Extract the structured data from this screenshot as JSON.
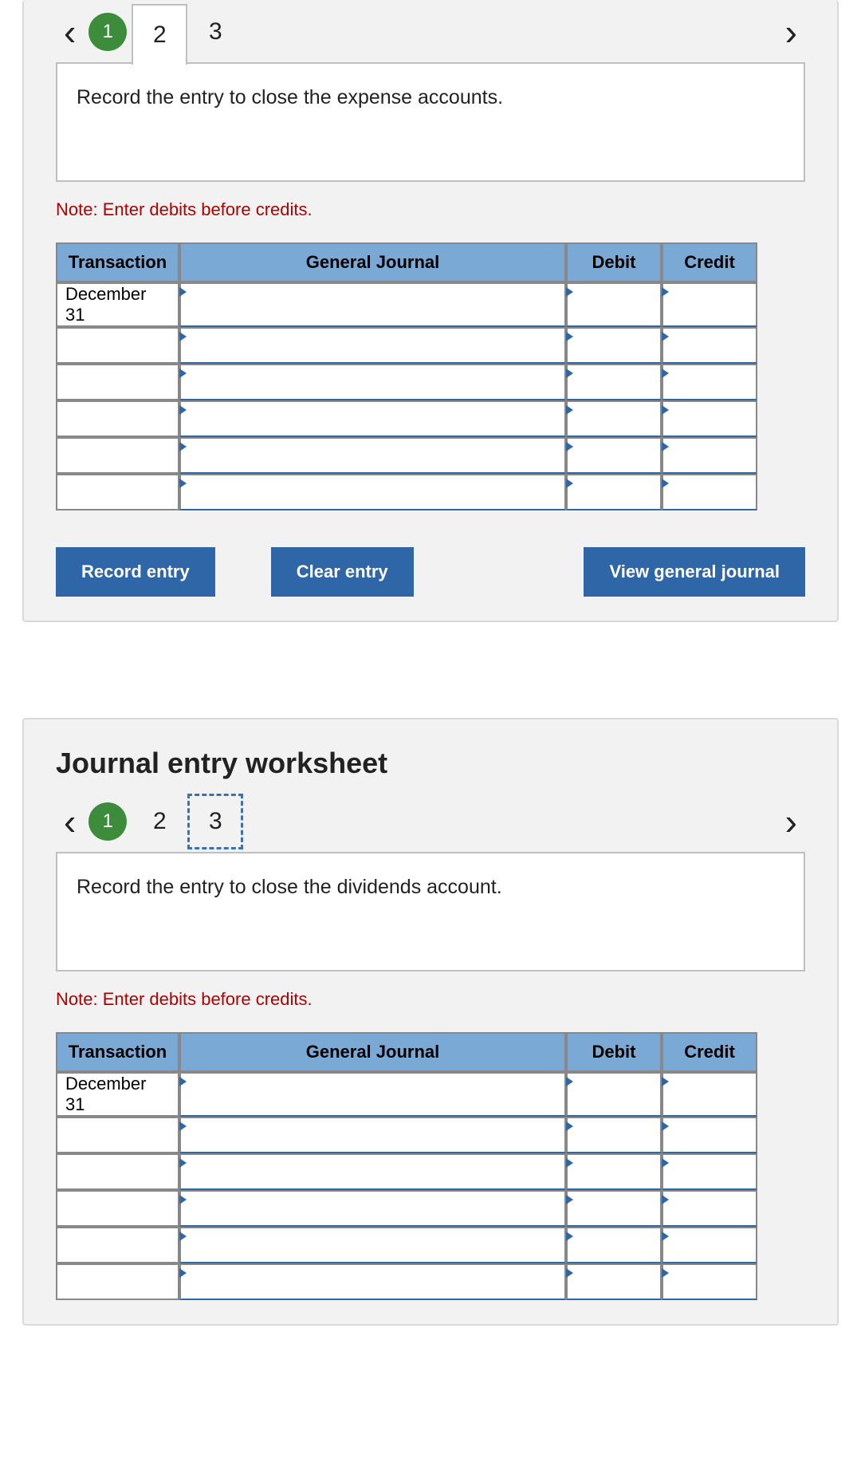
{
  "colors": {
    "panel_bg": "#f2f2f2",
    "panel_border": "#d9d9d9",
    "tab_circle_bg": "#3c8c3c",
    "header_bg": "#7aa9d6",
    "accent_blue": "#2f66a8",
    "note_red": "#b00000",
    "cell_border": "#888888",
    "text": "#222222"
  },
  "buttons": {
    "record": "Record entry",
    "clear": "Clear entry",
    "view": "View general journal"
  },
  "tableHeaders": {
    "trans": "Transaction",
    "gj": "General Journal",
    "debit": "Debit",
    "credit": "Credit"
  },
  "worksheets": [
    {
      "tabs": [
        "1",
        "2",
        "3"
      ],
      "activeTabIndex": 1,
      "completedTabIndex": 0,
      "instruction": "Record the entry to close the expense accounts.",
      "note": "Note: Enter debits before credits.",
      "rows": [
        {
          "date": "December 31",
          "gj": "",
          "debit": "",
          "credit": ""
        },
        {
          "date": "",
          "gj": "",
          "debit": "",
          "credit": ""
        },
        {
          "date": "",
          "gj": "",
          "debit": "",
          "credit": ""
        },
        {
          "date": "",
          "gj": "",
          "debit": "",
          "credit": ""
        },
        {
          "date": "",
          "gj": "",
          "debit": "",
          "credit": ""
        },
        {
          "date": "",
          "gj": "",
          "debit": "",
          "credit": ""
        }
      ]
    },
    {
      "title": "Journal entry worksheet",
      "tabs": [
        "1",
        "2",
        "3"
      ],
      "activeTabIndex": 2,
      "completedTabIndex": 0,
      "instruction": "Record the entry to close the dividends account.",
      "note": "Note: Enter debits before credits.",
      "rows": [
        {
          "date": "December 31",
          "gj": "",
          "debit": "",
          "credit": ""
        },
        {
          "date": "",
          "gj": "",
          "debit": "",
          "credit": ""
        },
        {
          "date": "",
          "gj": "",
          "debit": "",
          "credit": ""
        },
        {
          "date": "",
          "gj": "",
          "debit": "",
          "credit": ""
        },
        {
          "date": "",
          "gj": "",
          "debit": "",
          "credit": ""
        },
        {
          "date": "",
          "gj": "",
          "debit": "",
          "credit": ""
        }
      ]
    }
  ]
}
